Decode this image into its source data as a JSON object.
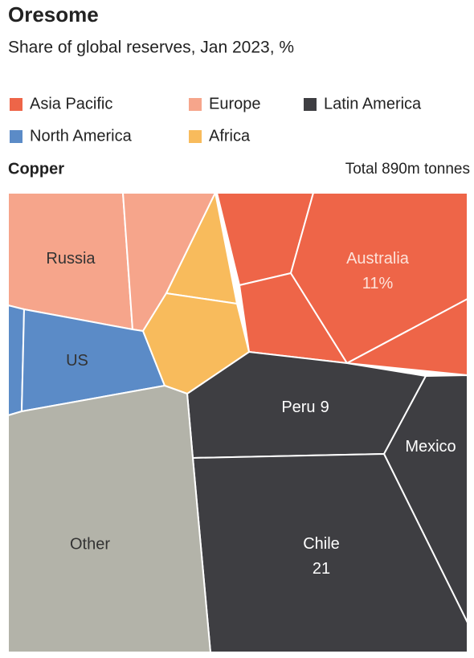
{
  "chart_data": {
    "type": "voronoi-treemap",
    "title": "Oresome",
    "subtitle": "Share of global reserves, Jan 2023, %",
    "panel_title": "Copper",
    "total_label": "Total",
    "total": "890m tonnes",
    "series": [
      {
        "name": "Asia Pacific",
        "color": "#ee6548",
        "categories": [
          null,
          null,
          "Australia",
          null
        ],
        "values": [
          3,
          3,
          11,
          2
        ],
        "value_labels": [
          null,
          null,
          "11%",
          null
        ]
      },
      {
        "name": "Europe",
        "color": "#f6a58b",
        "categories": [
          "Russia",
          null
        ],
        "values": [
          7,
          4
        ],
        "value_labels": [
          null,
          null
        ]
      },
      {
        "name": "Latin America",
        "color": "#3e3e42",
        "categories": [
          "Peru",
          "Mexico",
          "Chile"
        ],
        "values": [
          9,
          6,
          21
        ],
        "value_labels": [
          "9",
          null,
          "21"
        ]
      },
      {
        "name": "North America",
        "color": "#5b8bc7",
        "categories": [
          null,
          "US"
        ],
        "values": [
          1,
          5
        ],
        "value_labels": [
          null,
          null
        ]
      },
      {
        "name": "Africa",
        "color": "#f8bb5c",
        "categories": [
          null,
          null
        ],
        "values": [
          2,
          3
        ],
        "value_labels": [
          null,
          null
        ]
      }
    ],
    "other": {
      "category": "Other",
      "value": 23,
      "color": "#b3b3a9"
    }
  }
}
